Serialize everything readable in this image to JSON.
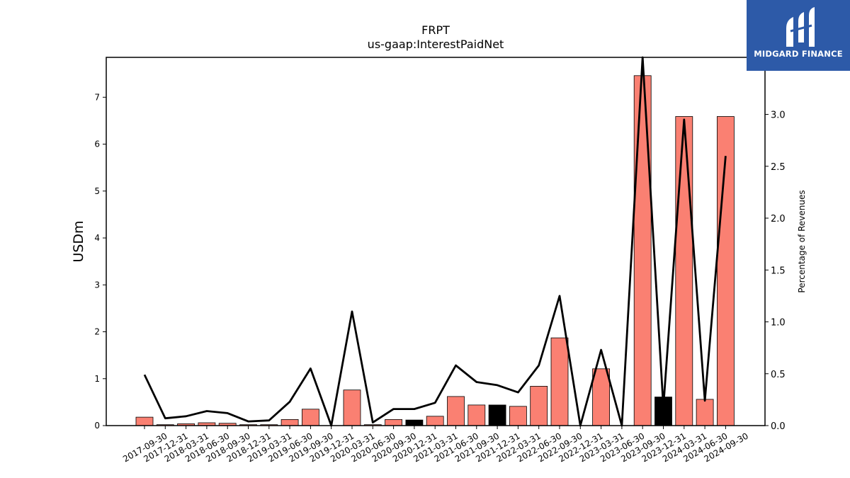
{
  "chart_data": {
    "type": "bar",
    "title": "FRPT",
    "subtitle": "us-gaap:InterestPaidNet",
    "ylabel": "USDm",
    "ylabel_right": "Percentage of Revenues",
    "ylim": [
      0,
      7.85
    ],
    "ylim_right": [
      0,
      3.55
    ],
    "yticks": [
      0,
      1,
      2,
      3,
      4,
      5,
      6,
      7
    ],
    "yticks_right": [
      "0.0",
      "0.5",
      "1.0",
      "1.5",
      "2.0",
      "2.5",
      "3.0"
    ],
    "categories": [
      "2017-09-30",
      "2017-12-31",
      "2018-03-31",
      "2018-06-30",
      "2018-09-30",
      "2018-12-31",
      "2019-03-31",
      "2019-06-30",
      "2019-09-30",
      "2019-12-31",
      "2020-03-31",
      "2020-06-30",
      "2020-09-30",
      "2020-12-31",
      "2021-03-31",
      "2021-06-30",
      "2021-09-30",
      "2021-12-31",
      "2022-03-31",
      "2022-06-30",
      "2022-09-30",
      "2022-12-31",
      "2023-03-31",
      "2023-06-30",
      "2023-09-30",
      "2023-12-31",
      "2024-03-31",
      "2024-06-30",
      "2024-09-30"
    ],
    "series": [
      {
        "kind": "bar",
        "values": [
          0.18,
          0.02,
          0.04,
          0.06,
          0.05,
          0.02,
          0.02,
          0.13,
          0.35,
          0.0,
          0.76,
          0.02,
          0.13,
          0.12,
          0.2,
          0.62,
          0.44,
          0.44,
          0.41,
          0.84,
          1.87,
          0.0,
          1.21,
          0.0,
          7.46,
          0.61,
          6.59,
          0.56,
          6.59
        ],
        "highlight": [
          false,
          false,
          false,
          false,
          false,
          false,
          false,
          false,
          false,
          false,
          false,
          false,
          false,
          true,
          false,
          false,
          false,
          true,
          false,
          false,
          false,
          false,
          false,
          false,
          false,
          true,
          false,
          false,
          false
        ]
      },
      {
        "kind": "line",
        "axis": "right",
        "values": [
          0.49,
          0.07,
          0.09,
          0.14,
          0.12,
          0.04,
          0.05,
          0.23,
          0.55,
          0.0,
          1.1,
          0.03,
          0.16,
          0.16,
          0.22,
          0.58,
          0.42,
          0.39,
          0.32,
          0.58,
          1.25,
          0.0,
          0.73,
          0.0,
          3.55,
          0.18,
          2.95,
          0.24,
          2.6
        ]
      }
    ],
    "colors": {
      "bar": "#fa8072",
      "bar_highlight": "#000000",
      "line": "#000000"
    }
  },
  "logo": {
    "text": "MIDGARD FINANCE"
  }
}
